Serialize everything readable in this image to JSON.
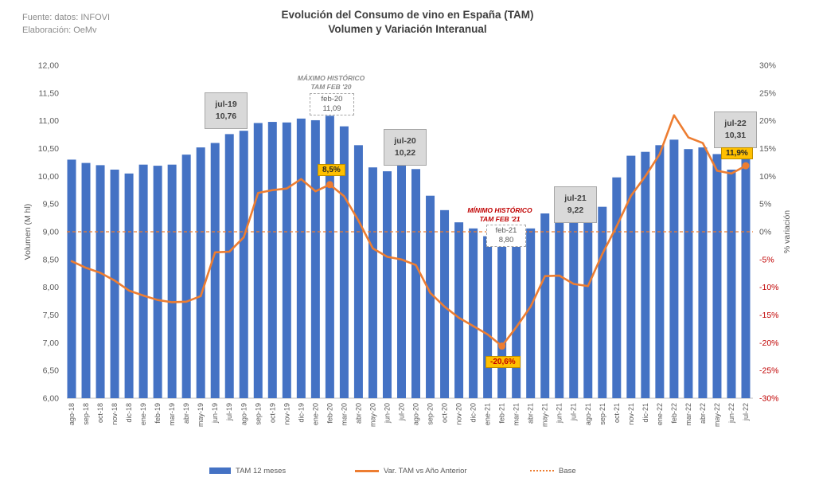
{
  "source": {
    "line1": "Fuente: datos: INFOVI",
    "line2": "Elaboración: OeMv"
  },
  "title": {
    "line1": "Evolución del Consumo de vino en España (TAM)",
    "line2": "Volumen y Variación Interanual"
  },
  "chart_data": {
    "type": "bar",
    "subtype": "combo-bar-line",
    "title": "Evolución del Consumo de vino en España (TAM) — Volumen y Variación Interanual",
    "categories": [
      "ago-18",
      "sep-18",
      "oct-18",
      "nov-18",
      "dic-18",
      "ene-19",
      "feb-19",
      "mar-19",
      "abr-19",
      "may-19",
      "jun-19",
      "jul-19",
      "ago-19",
      "sep-19",
      "oct-19",
      "nov-19",
      "dic-19",
      "ene-20",
      "feb-20",
      "mar-20",
      "abr-20",
      "may-20",
      "jun-20",
      "jul-20",
      "ago-20",
      "sep-20",
      "oct-20",
      "nov-20",
      "dic-20",
      "ene-21",
      "feb-21",
      "mar-21",
      "abr-21",
      "may-21",
      "jun-21",
      "jul-21",
      "ago-21",
      "sep-21",
      "oct-21",
      "nov-21",
      "dic-21",
      "ene-22",
      "feb-22",
      "mar-22",
      "abr-22",
      "may-22",
      "jun-22",
      "jul-22"
    ],
    "series": [
      {
        "name": "TAM 12 meses",
        "type": "bar",
        "axis": "left",
        "color": "#4472C4",
        "values": [
          10.3,
          10.24,
          10.2,
          10.12,
          10.05,
          10.21,
          10.19,
          10.21,
          10.39,
          10.52,
          10.6,
          10.76,
          10.82,
          10.96,
          10.98,
          10.97,
          11.04,
          11.01,
          11.09,
          10.9,
          10.56,
          10.16,
          10.09,
          10.22,
          10.13,
          9.65,
          9.39,
          9.17,
          9.06,
          8.92,
          8.8,
          9.01,
          9.06,
          9.33,
          9.29,
          9.22,
          9.25,
          9.45,
          9.98,
          10.37,
          10.44,
          10.56,
          10.66,
          10.49,
          10.52,
          10.4,
          10.12,
          10.31
        ]
      },
      {
        "name": "Var. TAM vs Año Anterior",
        "type": "line",
        "axis": "right",
        "color": "#ED7D31",
        "values": [
          -5.3,
          -6.5,
          -7.4,
          -8.8,
          -10.6,
          -11.5,
          -12.3,
          -12.7,
          -12.6,
          -11.6,
          -3.7,
          -3.6,
          -1.0,
          7.0,
          7.5,
          7.8,
          9.5,
          7.3,
          8.5,
          6.4,
          2.0,
          -3.0,
          -4.5,
          -5.0,
          -6.0,
          -11.0,
          -13.5,
          -15.5,
          -17.0,
          -18.5,
          -20.6,
          -17.2,
          -13.5,
          -8.0,
          -7.9,
          -9.4,
          -9.8,
          -4.0,
          1.0,
          6.5,
          10.0,
          14.0,
          21.0,
          17.0,
          16.0,
          11.0,
          10.5,
          11.9
        ]
      },
      {
        "name": "Base",
        "type": "dashed-line",
        "axis": "right",
        "color": "#ED7D31",
        "value": 0
      }
    ],
    "markers": [
      18,
      30,
      47
    ],
    "left_axis": {
      "title": "Volumen (M hl)",
      "min": 6,
      "max": 12,
      "step": 0.5
    },
    "right_axis": {
      "title": "% variación",
      "min": -30,
      "max": 30,
      "step": 5,
      "negative_color": "#C00000"
    },
    "grid": false,
    "legend_position": "bottom"
  },
  "annotations": {
    "jul19": {
      "line1": "jul-19",
      "line2": "10,76"
    },
    "maxnote": {
      "line1": "MÁXIMO HISTÓRICO",
      "line2": "TAM FEB '20"
    },
    "feb20": {
      "line1": "feb-20",
      "line2": "11,09"
    },
    "feb20var": "8,5%",
    "jul20": {
      "line1": "jul-20",
      "line2": "10,22"
    },
    "minnote": {
      "line1": "MÍNIMO HISTÓRICO",
      "line2": "TAM FEB '21"
    },
    "feb21": {
      "line1": "feb-21",
      "line2": "8,80"
    },
    "feb21var": "-20,6%",
    "jul21": {
      "line1": "jul-21",
      "line2": "9,22"
    },
    "jul22": {
      "line1": "jul-22",
      "line2": "10,31"
    },
    "jul22var": "11,9%"
  }
}
